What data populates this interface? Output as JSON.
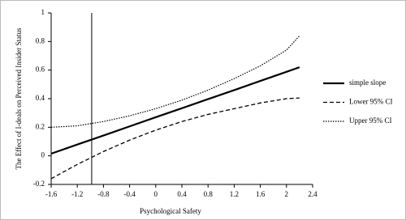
{
  "chart_data": {
    "type": "line",
    "xlabel": "Psychological Safety",
    "ylabel": "The Effect of I-deals on Perceived Insider Status",
    "x": [
      -1.6,
      -1.2,
      -0.8,
      -0.4,
      0,
      0.4,
      0.8,
      1.2,
      1.6,
      2.0,
      2.2
    ],
    "series": [
      {
        "name": "simple slope",
        "color": "#000000",
        "style": "solid",
        "values": [
          0.015,
          0.079,
          0.142,
          0.206,
          0.27,
          0.333,
          0.397,
          0.46,
          0.524,
          0.588,
          0.62
        ]
      },
      {
        "name": "Lower 95% CI",
        "color": "#000000",
        "style": "dashed",
        "values": [
          -0.16,
          -0.06,
          0.03,
          0.11,
          0.18,
          0.24,
          0.29,
          0.33,
          0.37,
          0.4,
          0.405
        ]
      },
      {
        "name": "Upper 95% CI",
        "color": "#000000",
        "style": "dotted",
        "values": [
          0.2,
          0.21,
          0.24,
          0.28,
          0.33,
          0.39,
          0.46,
          0.54,
          0.63,
          0.74,
          0.84
        ]
      }
    ],
    "reference_line_x": -0.98,
    "xlim": [
      -1.6,
      2.4
    ],
    "xticks": [
      -1.6,
      -1.2,
      -0.8,
      -0.4,
      0,
      0.4,
      0.8,
      1.2,
      1.6,
      2,
      2.4
    ],
    "ylim": [
      -0.2,
      1
    ],
    "yticks": [
      -0.2,
      0,
      0.2,
      0.4,
      0.6,
      0.8,
      1
    ],
    "grid": false,
    "legend": "right"
  }
}
